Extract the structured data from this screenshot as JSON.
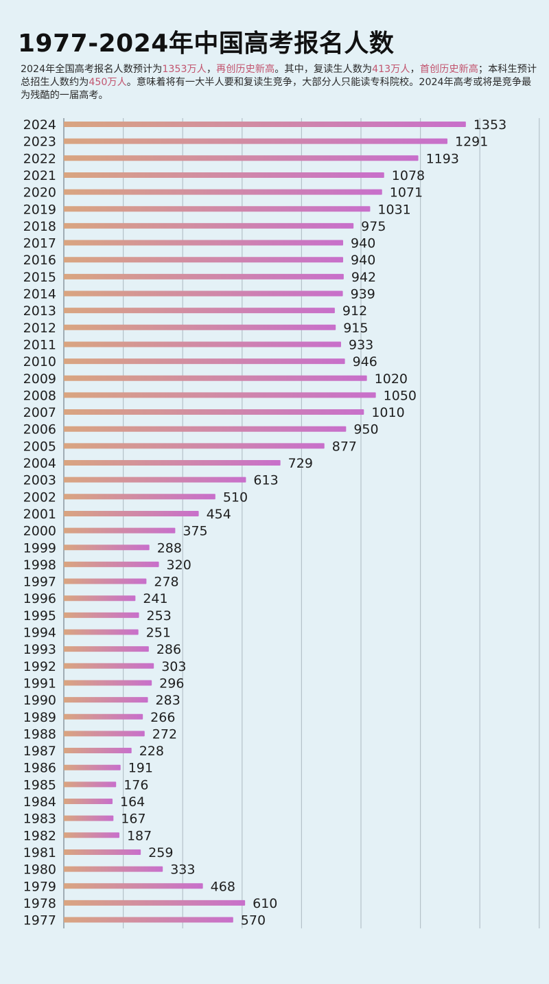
{
  "title": "1977-2024年中国高考报名人数",
  "description": {
    "parts": [
      {
        "text": "2024年全国高考报名人数预计为",
        "highlight": false
      },
      {
        "text": "1353万人",
        "highlight": true
      },
      {
        "text": "，",
        "highlight": false
      },
      {
        "text": "再创历史新高",
        "highlight": true
      },
      {
        "text": "。其中，复读生人数为",
        "highlight": false
      },
      {
        "text": "413万人",
        "highlight": true
      },
      {
        "text": "，",
        "highlight": false
      },
      {
        "text": "首创历史新高",
        "highlight": true
      },
      {
        "text": "；本科生预计总招生人数约为",
        "highlight": false
      },
      {
        "text": "450万人",
        "highlight": true
      },
      {
        "text": "。意味着将有一大半人要和复读生竞争，大部分人只能读专科院校。2024年高考或将是竞争最为残酷的一届高考。",
        "highlight": false
      }
    ]
  },
  "colors": {
    "bar_start": "#d9a580",
    "bar_end": "#c86fcb",
    "grid": "#b4c1c9",
    "axis": "#8f9ca4",
    "highlight": "#c2546e"
  },
  "chart_data": {
    "type": "bar",
    "orientation": "horizontal",
    "title": "1977-2024年中国高考报名人数",
    "unit": "万人",
    "xlim": [
      0,
      1600
    ],
    "grid": true,
    "categories": [
      "2024",
      "2023",
      "2022",
      "2021",
      "2020",
      "2019",
      "2018",
      "2017",
      "2016",
      "2015",
      "2014",
      "2013",
      "2012",
      "2011",
      "2010",
      "2009",
      "2008",
      "2007",
      "2006",
      "2005",
      "2004",
      "2003",
      "2002",
      "2001",
      "2000",
      "1999",
      "1998",
      "1997",
      "1996",
      "1995",
      "1994",
      "1993",
      "1992",
      "1991",
      "1990",
      "1989",
      "1988",
      "1987",
      "1986",
      "1985",
      "1984",
      "1983",
      "1982",
      "1981",
      "1980",
      "1979",
      "1978",
      "1977"
    ],
    "values": [
      1353,
      1291,
      1193,
      1078,
      1071,
      1031,
      975,
      940,
      940,
      942,
      939,
      912,
      915,
      933,
      946,
      1020,
      1050,
      1010,
      950,
      877,
      729,
      613,
      510,
      454,
      375,
      288,
      320,
      278,
      241,
      253,
      251,
      286,
      303,
      296,
      283,
      266,
      272,
      228,
      191,
      176,
      164,
      167,
      187,
      259,
      333,
      468,
      610,
      570
    ],
    "labels": [
      "1353",
      "1291",
      "1193",
      "1078",
      "1071",
      "1031",
      "975",
      "940",
      "940",
      "942",
      "939",
      "912",
      "915",
      "933",
      "946",
      "1020",
      "1050",
      "1010",
      "950",
      "877",
      "729",
      "613",
      "510",
      "454",
      "375",
      "288",
      "320",
      "278",
      "241",
      "253",
      "251",
      "286",
      "303",
      "296",
      "283",
      "266",
      "272",
      "228",
      "191",
      "176",
      "164",
      "167",
      "187",
      "259",
      "333",
      "468",
      "610",
      "570"
    ]
  }
}
